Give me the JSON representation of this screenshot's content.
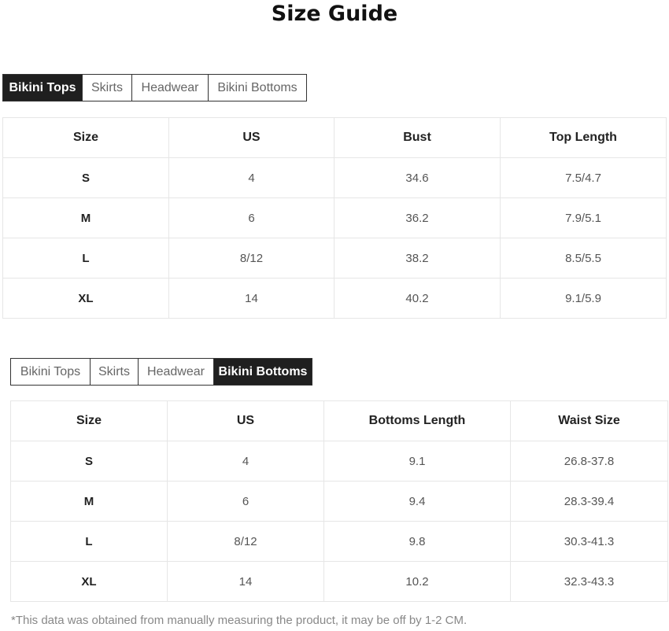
{
  "title": "Size Guide",
  "tabs": [
    "Bikini Tops",
    "Skirts",
    "Headwear",
    "Bikini Bottoms"
  ],
  "tops": {
    "active_tab": "Bikini Tops",
    "headers": [
      "Size",
      "US",
      "Bust",
      "Top Length"
    ],
    "rows": [
      [
        "S",
        "4",
        "34.6",
        "7.5/4.7"
      ],
      [
        "M",
        "6",
        "36.2",
        "7.9/5.1"
      ],
      [
        "L",
        "8/12",
        "38.2",
        "8.5/5.5"
      ],
      [
        "XL",
        "14",
        "40.2",
        "9.1/5.9"
      ]
    ]
  },
  "bottoms": {
    "active_tab": "Bikini Bottoms",
    "headers": [
      "Size",
      "US",
      "Bottoms Length",
      "Waist Size"
    ],
    "rows": [
      [
        "S",
        "4",
        "9.1",
        "26.8-37.8"
      ],
      [
        "M",
        "6",
        "9.4",
        "28.3-39.4"
      ],
      [
        "L",
        "8/12",
        "9.8",
        "30.3-41.3"
      ],
      [
        "XL",
        "14",
        "10.2",
        "32.3-43.3"
      ]
    ]
  },
  "note": "*This data was obtained from manually measuring the product, it may be off by 1-2 CM."
}
